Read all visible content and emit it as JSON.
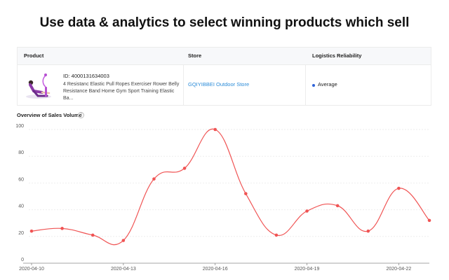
{
  "headline": "Use data & analytics to select winning products which sell",
  "table": {
    "headers": {
      "product": "Product",
      "store": "Store",
      "logistics": "Logistics Reliability"
    },
    "row": {
      "product_id": "ID: 4000131634003",
      "product_title": "4 Resistanc Elastic Pull Ropes Exerciser Rower Belly Resistance Band Home Gym Sport Training Elastic Ba...",
      "store": "GQIYIBBEI Outdoor Store",
      "logistics": "Average",
      "logistics_dot_color": "#2f63d8",
      "product_image_icon": "fitness-product-photo"
    }
  },
  "chart_section": {
    "title": "Overview of Sales Volume",
    "help_icon": "question-circle-icon",
    "help_glyph": "?"
  },
  "chart_data": {
    "type": "line",
    "x": [
      "2020-04-10",
      "2020-04-11",
      "2020-04-12",
      "2020-04-13",
      "2020-04-14",
      "2020-04-15",
      "2020-04-16",
      "2020-04-17",
      "2020-04-18",
      "2020-04-19",
      "2020-04-20",
      "2020-04-21",
      "2020-04-22",
      "2020-04-23"
    ],
    "x_ticks": [
      "2020-04-10",
      "2020-04-13",
      "2020-04-16",
      "2020-04-19",
      "2020-04-22"
    ],
    "values": [
      24,
      26,
      21,
      17,
      63,
      71,
      100,
      52,
      21,
      39,
      43,
      24,
      56,
      32
    ],
    "y_ticks": [
      0,
      20,
      40,
      60,
      80,
      100
    ],
    "ylim": [
      0,
      100
    ],
    "line_color": "#f05454",
    "grid": true,
    "title": "Overview of Sales Volume"
  }
}
